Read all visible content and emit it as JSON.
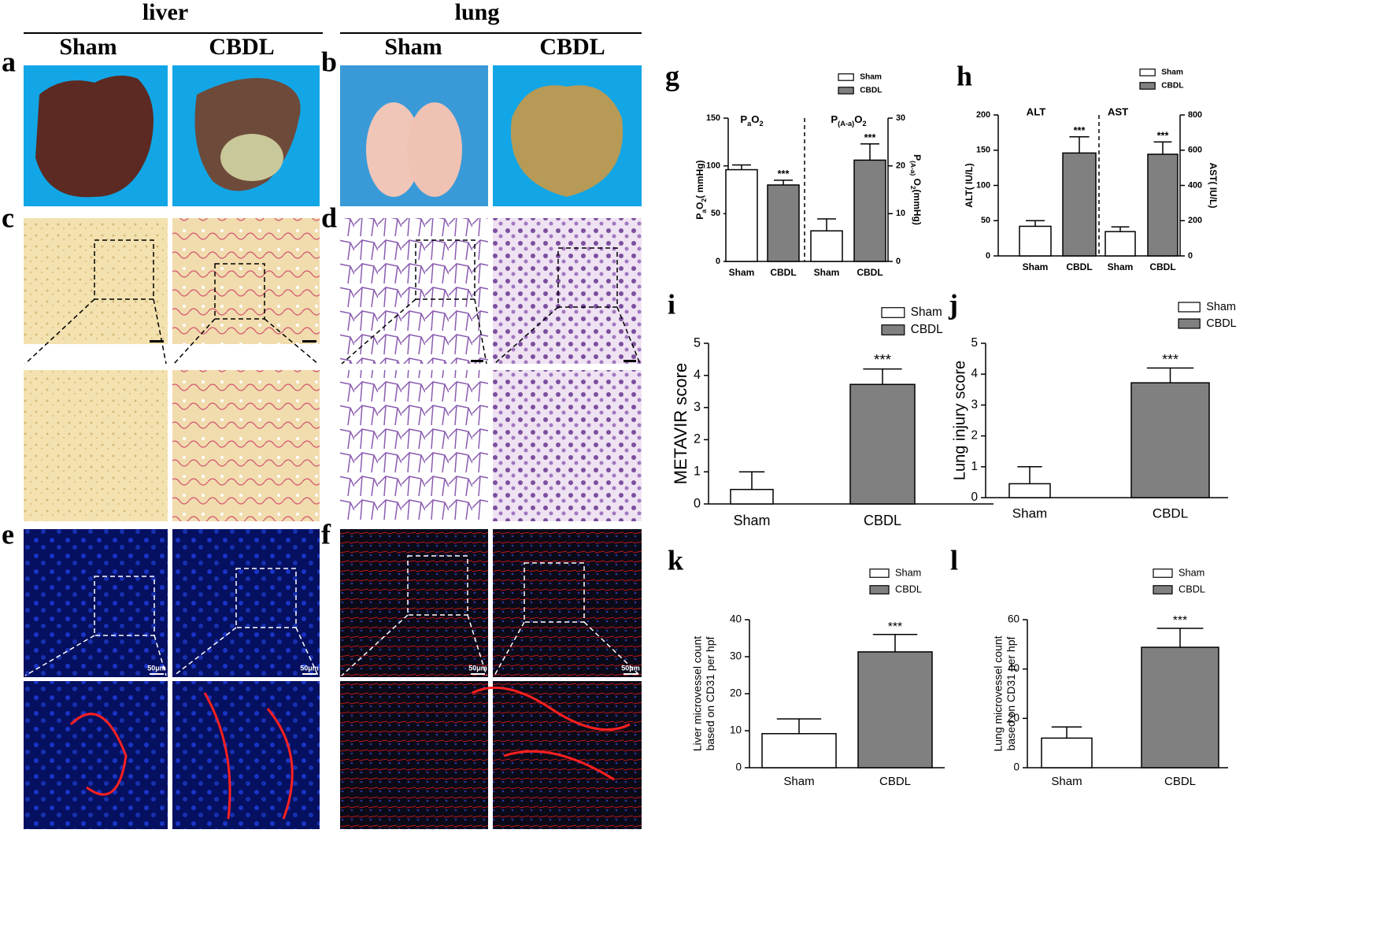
{
  "headers": {
    "liver": "liver",
    "lung": "lung",
    "columns": [
      "Sham",
      "CBDL",
      "Sham",
      "CBDL"
    ]
  },
  "panel_labels": [
    "a",
    "b",
    "c",
    "d",
    "e",
    "f"
  ],
  "scale_bars": [
    "50μm",
    "50μm",
    "50μm",
    "50μm"
  ],
  "chart_data": [
    {
      "type": "bar",
      "label": "g",
      "series": [
        {
          "name": "Sham",
          "color": "#ffffff"
        },
        {
          "name": "CBDL",
          "color": "#808080"
        }
      ],
      "ylabel": {
        "parts": [
          "P",
          "a",
          "O",
          "2",
          "( mmHg)"
        ]
      },
      "y2label": {
        "parts": [
          "P",
          "(A-a)",
          " O",
          "2",
          "(mmHg)"
        ]
      },
      "ylim": [
        0,
        150
      ],
      "yticks": [
        0,
        50,
        100,
        150
      ],
      "y2lim": [
        0,
        30
      ],
      "y2ticks": [
        0,
        10,
        20,
        30
      ],
      "groups": [
        {
          "title": {
            "parts": [
              "P",
              "a",
              "O",
              "2"
            ]
          },
          "axis": "y",
          "categories": [
            "Sham",
            "CBDL"
          ],
          "values": [
            96,
            80
          ],
          "errors": [
            5,
            5
          ],
          "significance": [
            null,
            "***"
          ]
        },
        {
          "title": {
            "parts": [
              "P",
              "(A-a)",
              "O",
              "2"
            ]
          },
          "axis": "y2",
          "categories": [
            "Sham",
            "CBDL"
          ],
          "values": [
            6.4,
            21.2
          ],
          "errors": [
            2.5,
            3.4
          ],
          "significance": [
            null,
            "***"
          ]
        }
      ]
    },
    {
      "type": "bar",
      "label": "h",
      "series": [
        {
          "name": "Sham",
          "color": "#ffffff"
        },
        {
          "name": "CBDL",
          "color": "#808080"
        }
      ],
      "ylabel": "ALT( IU/L)",
      "y2label": "AST( IU/L)",
      "ylim": [
        0,
        200
      ],
      "yticks": [
        0,
        50,
        100,
        150,
        200
      ],
      "y2lim": [
        0,
        800
      ],
      "y2ticks": [
        0,
        200,
        400,
        600,
        800
      ],
      "groups": [
        {
          "title": "ALT",
          "axis": "y",
          "categories": [
            "Sham",
            "CBDL"
          ],
          "values": [
            42,
            146
          ],
          "errors": [
            8,
            23
          ],
          "significance": [
            null,
            "***"
          ]
        },
        {
          "title": "AST",
          "axis": "y2",
          "categories": [
            "Sham",
            "CBDL"
          ],
          "values": [
            138,
            577
          ],
          "errors": [
            27,
            70
          ],
          "significance": [
            null,
            "***"
          ]
        }
      ]
    },
    {
      "type": "bar",
      "label": "i",
      "series": [
        {
          "name": "Sham",
          "color": "#ffffff"
        },
        {
          "name": "CBDL",
          "color": "#808080"
        }
      ],
      "ylabel": "METAVIR score",
      "ylim": [
        0,
        5
      ],
      "yticks": [
        0,
        1,
        2,
        3,
        4,
        5
      ],
      "categories": [
        "Sham",
        "CBDL"
      ],
      "values": [
        0.45,
        3.72
      ],
      "errors": [
        0.55,
        0.48
      ],
      "significance": [
        null,
        "***"
      ]
    },
    {
      "type": "bar",
      "label": "j",
      "series": [
        {
          "name": "Sham",
          "color": "#ffffff"
        },
        {
          "name": "CBDL",
          "color": "#808080"
        }
      ],
      "ylabel": "Lung injury score",
      "ylim": [
        0,
        5
      ],
      "yticks": [
        0,
        1,
        2,
        3,
        4,
        5
      ],
      "categories": [
        "Sham",
        "CBDL"
      ],
      "values": [
        0.45,
        3.72
      ],
      "errors": [
        0.55,
        0.48
      ],
      "significance": [
        null,
        "***"
      ]
    },
    {
      "type": "bar",
      "label": "k",
      "series": [
        {
          "name": "Sham",
          "color": "#ffffff"
        },
        {
          "name": "CBDL",
          "color": "#808080"
        }
      ],
      "ylabel": [
        "Liver microvessel count",
        "based on CD31 per hpf"
      ],
      "ylim": [
        0,
        40
      ],
      "yticks": [
        0,
        10,
        20,
        30,
        40
      ],
      "categories": [
        "Sham",
        "CBDL"
      ],
      "values": [
        9.2,
        31.3
      ],
      "errors": [
        4,
        4.7
      ],
      "significance": [
        null,
        "***"
      ]
    },
    {
      "type": "bar",
      "label": "l",
      "series": [
        {
          "name": "Sham",
          "color": "#ffffff"
        },
        {
          "name": "CBDL",
          "color": "#808080"
        }
      ],
      "ylabel": [
        "Lung microvessel count",
        "based on CD31 per hpf"
      ],
      "ylim": [
        0,
        60
      ],
      "yticks": [
        0,
        20,
        40,
        60
      ],
      "categories": [
        "Sham",
        "CBDL"
      ],
      "values": [
        12,
        48.8
      ],
      "errors": [
        4.5,
        7.7
      ],
      "significance": [
        null,
        "***"
      ]
    }
  ]
}
